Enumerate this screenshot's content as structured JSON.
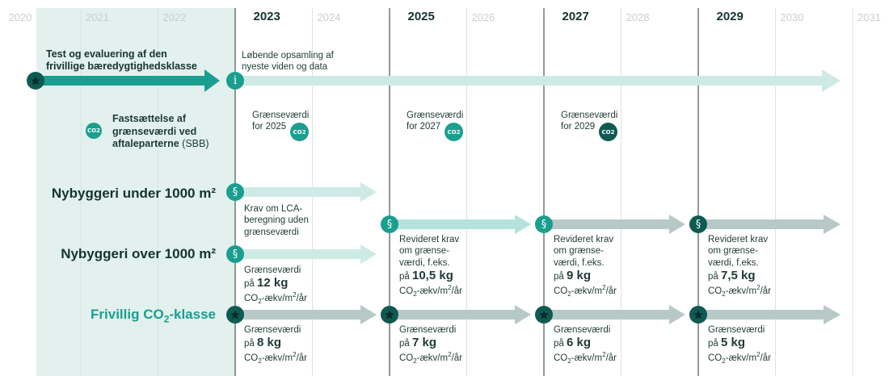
{
  "colors": {
    "dark": "#0f5a52",
    "teal": "#1a9e8f",
    "mint": "#aee0d9",
    "grey": "#b5c3c1",
    "band": "#e2f1ee"
  },
  "years": [
    "2020",
    "2021",
    "2022",
    "2023",
    "2024",
    "2025",
    "2026",
    "2027",
    "2028",
    "2029",
    "2030",
    "2031"
  ],
  "major_years": [
    "2023",
    "2025",
    "2027",
    "2029"
  ],
  "top": {
    "test_title": "Test og evaluering af den\nfrivillige bæredygtighedsklasse",
    "collection_text": "Løbende opsamling af\nnyeste viden og data",
    "info_icon": "i",
    "star_icon": "star-icon"
  },
  "threshold": {
    "title_bold": "Fastsættelse af\ngrænseværdi ved\naftaleparterne",
    "title_suffix": "(SBB)",
    "icon_label": "CO2",
    "items": [
      {
        "text": "Grænseværdi\nfor 2025"
      },
      {
        "text": "Grænseværdi\nfor 2027"
      },
      {
        "text": "Grænseværdi\nfor 2029"
      }
    ]
  },
  "rows": {
    "under": {
      "label": "Nybyggeri under 1000 m²",
      "note": "Krav om LCA-\nberegning uden\ngrænseværdi"
    },
    "over": {
      "label": "Nybyggeri over 1000 m²",
      "items": [
        {
          "pre": "Grænseværdi\npå ",
          "value": "12 kg",
          "unit_a": "CO",
          "unit_sub": "2",
          "unit_b": "-ækv/m",
          "unit_sup": "2",
          "unit_c": "/år"
        },
        {
          "pre": "Revideret krav\nom grænse-\nværdi, f.eks.\npå ",
          "value": "10,5 kg",
          "unit_a": "CO",
          "unit_sub": "2",
          "unit_b": "-ækv/m",
          "unit_sup": "2",
          "unit_c": "/år"
        },
        {
          "pre": "Revideret krav\nom grænse-\nværdi, f.eks.\npå ",
          "value": "9 kg",
          "unit_a": "CO",
          "unit_sub": "2",
          "unit_b": "-ækv/m",
          "unit_sup": "2",
          "unit_c": "/år"
        },
        {
          "pre": "Revideret krav\nom grænse-\nværdi, f.eks.\npå ",
          "value": "7,5 kg",
          "unit_a": "CO",
          "unit_sub": "2",
          "unit_b": "-ækv/m",
          "unit_sup": "2",
          "unit_c": "/år"
        }
      ]
    },
    "voluntary": {
      "label_a": "Frivillig CO",
      "label_sub": "2",
      "label_b": "-klasse",
      "items": [
        {
          "pre": "Grænseværdi\npå ",
          "value": "8 kg",
          "unit_a": "CO",
          "unit_sub": "2",
          "unit_b": "-ækv/m",
          "unit_sup": "2",
          "unit_c": "/år"
        },
        {
          "pre": "Grænseværdi\npå ",
          "value": "7 kg",
          "unit_a": "CO",
          "unit_sub": "2",
          "unit_b": "-ækv/m",
          "unit_sup": "2",
          "unit_c": "/år"
        },
        {
          "pre": "Grænseværdi\npå ",
          "value": "6 kg",
          "unit_a": "CO",
          "unit_sub": "2",
          "unit_b": "-ækv/m",
          "unit_sup": "2",
          "unit_c": "/år"
        },
        {
          "pre": "Grænseværdi\npå ",
          "value": "5 kg",
          "unit_a": "CO",
          "unit_sub": "2",
          "unit_b": "-ækv/m",
          "unit_sup": "2",
          "unit_c": "/år"
        }
      ]
    }
  },
  "section_icon": "§"
}
